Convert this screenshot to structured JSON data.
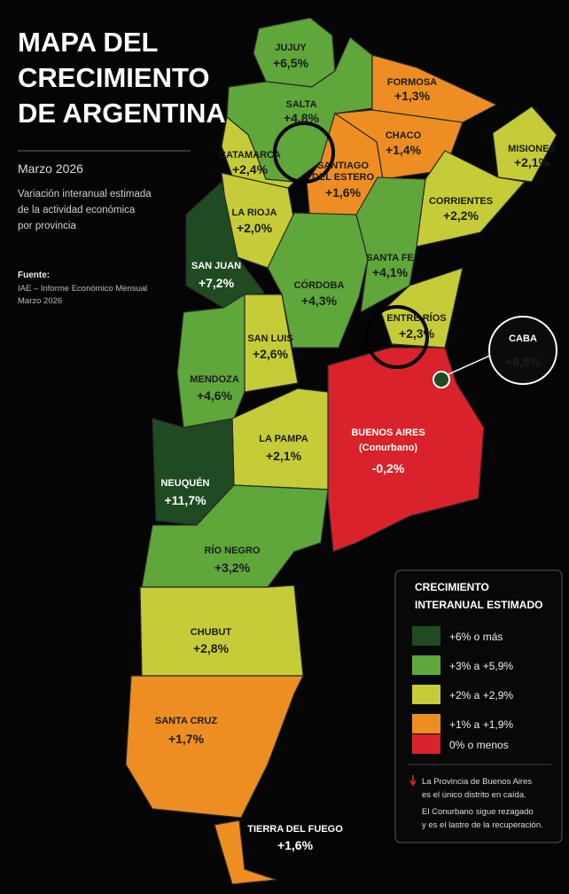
{
  "header": {
    "title": [
      "MAPA DEL",
      "CRECIMIENTO",
      "DE ARGENTINA"
    ],
    "date": "Marzo 2026",
    "description": [
      "Variación interanual estimada",
      "de la actividad económica",
      "por provincia"
    ],
    "source_label": "Fuente:",
    "source": [
      "IAE – Informe Económico Mensual",
      "Marzo 2026"
    ]
  },
  "provinces": [
    {
      "name": [
        "JUJUY"
      ],
      "value": "+6,5%"
    },
    {
      "name": [
        "SALTA"
      ],
      "value": "+4,8%"
    },
    {
      "name": [
        "FORMOSA"
      ],
      "value": "+1,3%"
    },
    {
      "name": [
        "CHACO"
      ],
      "value": "+1,4%"
    },
    {
      "name": [
        "MISIONES"
      ],
      "value": "+2,1%"
    },
    {
      "name": [
        "CATAMARCA"
      ],
      "value": "+2,4%"
    },
    {
      "name": [
        "SANTIAGO",
        "DEL ESTERO"
      ],
      "value": "+1,6%"
    },
    {
      "name": [
        "CORRIENTES"
      ],
      "value": "+2,2%"
    },
    {
      "name": [
        "LA RIOJA"
      ],
      "value": "+2,0%"
    },
    {
      "name": [
        "SANTA FE"
      ],
      "value": "+4,1%"
    },
    {
      "name": [
        "SAN JUAN"
      ],
      "value": "+7,2%"
    },
    {
      "name": [
        "CÓRDOBA"
      ],
      "value": "+4,3%"
    },
    {
      "name": [
        "ENTRE RÍOS"
      ],
      "value": "+2,3%"
    },
    {
      "name": [
        "SAN LUIS"
      ],
      "value": "+2,6%"
    },
    {
      "name": [
        "MENDOZA"
      ],
      "value": "+4,6%"
    },
    {
      "name": [
        "CABA"
      ],
      "value": "+6,8%"
    },
    {
      "name": [
        "BUENOS AIRES"
      ],
      "note": "(Conurbano)",
      "value": "-0,2%"
    },
    {
      "name": [
        "LA PAMPA"
      ],
      "value": "+2,1%"
    },
    {
      "name": [
        "NEUQUÉN"
      ],
      "value": "+11,7%"
    },
    {
      "name": [
        "RÍO NEGRO"
      ],
      "value": "+3,2%"
    },
    {
      "name": [
        "CHUBUT"
      ],
      "value": "+2,8%"
    },
    {
      "name": [
        "SANTA CRUZ"
      ],
      "value": "+1,7%"
    },
    {
      "name": [
        "TIERRA DEL FUEGO"
      ],
      "value": "+1,6%"
    }
  ],
  "legend": {
    "title": [
      "CRECIMIENTO",
      "INTERANUAL ESTIMADO"
    ],
    "items": [
      "+6% o más",
      "+3% a +5,9%",
      "+2% a +2,9%",
      "+1% a +1,9%",
      "0% o menos"
    ],
    "note": [
      "La Provincia de Buenos Aires",
      "es el único distrito en caída.",
      "El Conurbano sigue rezagado",
      "y es el lastre de la recuperación."
    ]
  }
}
